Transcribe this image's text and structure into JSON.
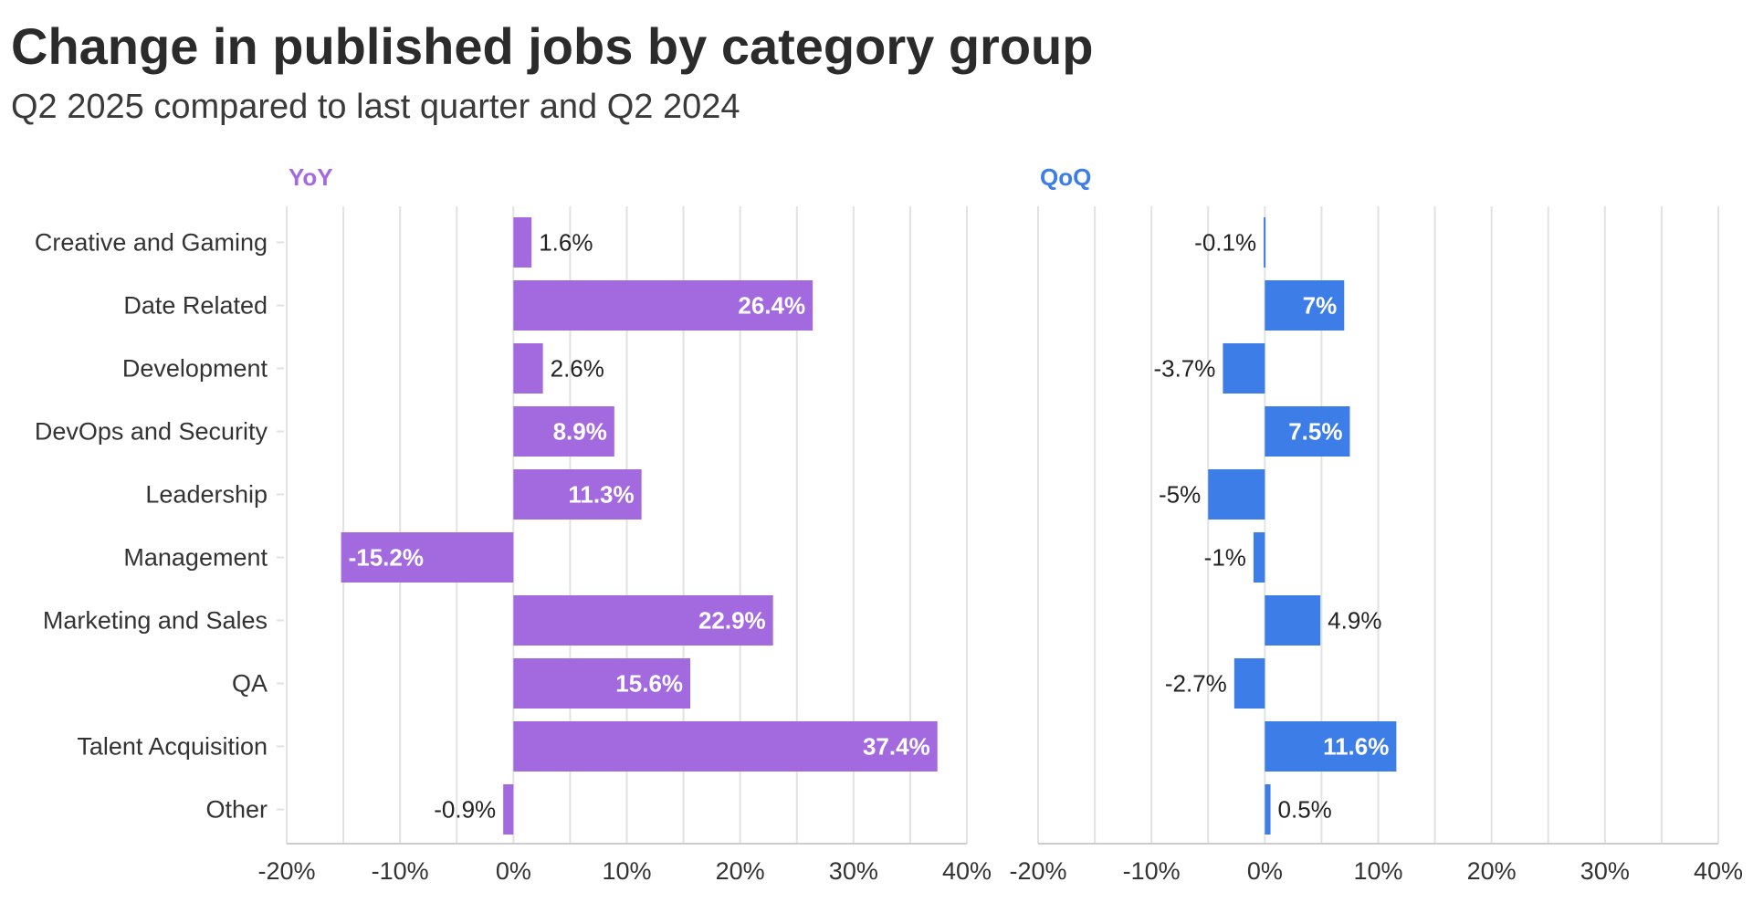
{
  "title": "Change in published jobs by category group",
  "subtitle": "Q2 2025 compared to last quarter and Q2 2024",
  "colors": {
    "yoy": "#a36ae0",
    "qoq": "#3d7de8",
    "grid": "#e2e2e2",
    "zero": "#cccccc"
  },
  "chart_data": [
    {
      "type": "bar",
      "orientation": "horizontal",
      "title": "YoY",
      "categories": [
        "Creative and Gaming",
        "Date Related",
        "Development",
        "DevOps and Security",
        "Leadership",
        "Management",
        "Marketing and Sales",
        "QA",
        "Talent Acquisition",
        "Other"
      ],
      "values": [
        1.6,
        26.4,
        2.6,
        8.9,
        11.3,
        -15.2,
        22.9,
        15.6,
        37.4,
        -0.9
      ],
      "value_labels": [
        "1.6%",
        "26.4%",
        "2.6%",
        "8.9%",
        "11.3%",
        "-15.2%",
        "22.9%",
        "15.6%",
        "37.4%",
        "-0.9%"
      ],
      "xlim": [
        -20,
        40
      ],
      "xticks": [
        -20,
        -10,
        0,
        10,
        20,
        30,
        40
      ],
      "xtick_labels": [
        "-20%",
        "-10%",
        "0%",
        "10%",
        "20%",
        "30%",
        "40%"
      ]
    },
    {
      "type": "bar",
      "orientation": "horizontal",
      "title": "QoQ",
      "categories": [
        "Creative and Gaming",
        "Date Related",
        "Development",
        "DevOps and Security",
        "Leadership",
        "Management",
        "Marketing and Sales",
        "QA",
        "Talent Acquisition",
        "Other"
      ],
      "values": [
        -0.1,
        7,
        -3.7,
        7.5,
        -5,
        -1,
        4.9,
        -2.7,
        11.6,
        0.5
      ],
      "value_labels": [
        "-0.1%",
        "7%",
        "-3.7%",
        "7.5%",
        "-5%",
        "-1%",
        "4.9%",
        "-2.7%",
        "11.6%",
        "0.5%"
      ],
      "xlim": [
        -20,
        40
      ],
      "xticks": [
        -20,
        -10,
        0,
        10,
        20,
        30,
        40
      ],
      "xtick_labels": [
        "-20%",
        "-10%",
        "0%",
        "10%",
        "20%",
        "30%",
        "40%"
      ]
    }
  ]
}
